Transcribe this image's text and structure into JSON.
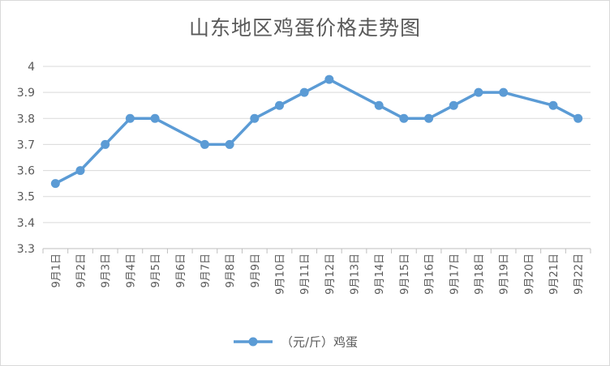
{
  "chart_data": {
    "type": "line",
    "title": "山东地区鸡蛋价格走势图",
    "xlabel": "",
    "ylabel": "",
    "ylim": [
      3.3,
      4.0
    ],
    "yticks": [
      "3.3",
      "3.4",
      "3.5",
      "3.6",
      "3.7",
      "3.8",
      "3.9",
      "4"
    ],
    "categories": [
      "9月1日",
      "9月2日",
      "9月3日",
      "9月4日",
      "9月5日",
      "9月6日",
      "9月7日",
      "9月8日",
      "9月9日",
      "9月10日",
      "9月11日",
      "9月12日",
      "9月13日",
      "9月14日",
      "9月15日",
      "9月16日",
      "9月17日",
      "9月18日",
      "9月19日",
      "9月20日",
      "9月21日",
      "9月22日"
    ],
    "grid": true,
    "legend_position": "bottom",
    "series": [
      {
        "name": "（元/斤）鸡蛋",
        "color": "#5b9bd5",
        "values": [
          3.55,
          3.6,
          3.7,
          3.8,
          3.8,
          null,
          3.7,
          3.7,
          3.8,
          3.85,
          3.9,
          3.95,
          null,
          3.85,
          3.8,
          3.8,
          3.85,
          3.9,
          3.9,
          null,
          3.85,
          3.8
        ]
      }
    ]
  }
}
